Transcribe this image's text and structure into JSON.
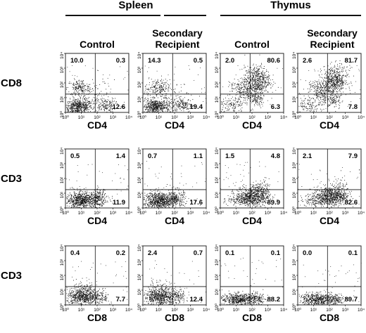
{
  "figure": {
    "groups": [
      {
        "label": "Spleen",
        "panel_cols": [
          0,
          1
        ]
      },
      {
        "label": "Thymus",
        "panel_cols": [
          2,
          3
        ]
      }
    ],
    "conditions": [
      {
        "line1": "Control",
        "line2": ""
      },
      {
        "line1": "Secondary",
        "line2": "Recipient"
      },
      {
        "line1": "Control",
        "line2": ""
      },
      {
        "line1": "Secondary",
        "line2": "Recipient"
      }
    ],
    "tick_labels": [
      "10⁰",
      "10¹",
      "10²",
      "10³",
      "10⁴"
    ],
    "rows": [
      {
        "y_label": "CD8",
        "x_label": "CD4",
        "panels": [
          {
            "upper_left": "10.0",
            "upper_right": "0.3",
            "lower_right": "12.6"
          },
          {
            "upper_left": "14.3",
            "upper_right": "0.5",
            "lower_right": "19.4"
          },
          {
            "upper_left": "2.0",
            "upper_right": "80.6",
            "lower_right": "6.3"
          },
          {
            "upper_left": "2.6",
            "upper_right": "81.7",
            "lower_right": "7.8"
          }
        ]
      },
      {
        "y_label": "CD3",
        "x_label": "CD4",
        "panels": [
          {
            "upper_left": "0.5",
            "upper_right": "1.4",
            "lower_right": "11.9"
          },
          {
            "upper_left": "0.7",
            "upper_right": "1.1",
            "lower_right": "17.6"
          },
          {
            "upper_left": "1.5",
            "upper_right": "4.8",
            "lower_right": "89.9"
          },
          {
            "upper_left": "2.1",
            "upper_right": "7.9",
            "lower_right": "82.6"
          }
        ]
      },
      {
        "y_label": "CD3",
        "x_label": "CD8",
        "panels": [
          {
            "upper_left": "0.4",
            "upper_right": "0.2",
            "lower_right": "7.7"
          },
          {
            "upper_left": "2.4",
            "upper_right": "0.7",
            "lower_right": "12.4"
          },
          {
            "upper_left": "0.1",
            "upper_right": "0.1",
            "lower_right": "88.2"
          },
          {
            "upper_left": "0.0",
            "upper_right": "0.1",
            "lower_right": "89.7"
          }
        ]
      }
    ]
  },
  "chart_data": {
    "type": "scatter",
    "description_kind": "flow cytometry dot plots with quadrant percentages",
    "axis_scale": "log",
    "axis_range": [
      1,
      10000
    ],
    "panels": [
      {
        "tissue": "Spleen",
        "condition": "Control",
        "x": "CD4",
        "y": "CD8",
        "UL": 10.0,
        "UR": 0.3,
        "LR": 12.6
      },
      {
        "tissue": "Spleen",
        "condition": "Secondary Recipient",
        "x": "CD4",
        "y": "CD8",
        "UL": 14.3,
        "UR": 0.5,
        "LR": 19.4
      },
      {
        "tissue": "Thymus",
        "condition": "Control",
        "x": "CD4",
        "y": "CD8",
        "UL": 2.0,
        "UR": 80.6,
        "LR": 6.3
      },
      {
        "tissue": "Thymus",
        "condition": "Secondary Recipient",
        "x": "CD4",
        "y": "CD8",
        "UL": 2.6,
        "UR": 81.7,
        "LR": 7.8
      },
      {
        "tissue": "Spleen",
        "condition": "Control",
        "x": "CD4",
        "y": "CD3",
        "UL": 0.5,
        "UR": 1.4,
        "LR": 11.9
      },
      {
        "tissue": "Spleen",
        "condition": "Secondary Recipient",
        "x": "CD4",
        "y": "CD3",
        "UL": 0.7,
        "UR": 1.1,
        "LR": 17.6
      },
      {
        "tissue": "Thymus",
        "condition": "Control",
        "x": "CD4",
        "y": "CD3",
        "UL": 1.5,
        "UR": 4.8,
        "LR": 89.9
      },
      {
        "tissue": "Thymus",
        "condition": "Secondary Recipient",
        "x": "CD4",
        "y": "CD3",
        "UL": 2.1,
        "UR": 7.9,
        "LR": 82.6
      },
      {
        "tissue": "Spleen",
        "condition": "Control",
        "x": "CD8",
        "y": "CD3",
        "UL": 0.4,
        "UR": 0.2,
        "LR": 7.7
      },
      {
        "tissue": "Spleen",
        "condition": "Secondary Recipient",
        "x": "CD8",
        "y": "CD3",
        "UL": 2.4,
        "UR": 0.7,
        "LR": 12.4
      },
      {
        "tissue": "Thymus",
        "condition": "Control",
        "x": "CD8",
        "y": "CD3",
        "UL": 0.1,
        "UR": 0.1,
        "LR": 88.2
      },
      {
        "tissue": "Thymus",
        "condition": "Secondary Recipient",
        "x": "CD8",
        "y": "CD3",
        "UL": 0.0,
        "UR": 0.1,
        "LR": 89.7
      }
    ]
  }
}
